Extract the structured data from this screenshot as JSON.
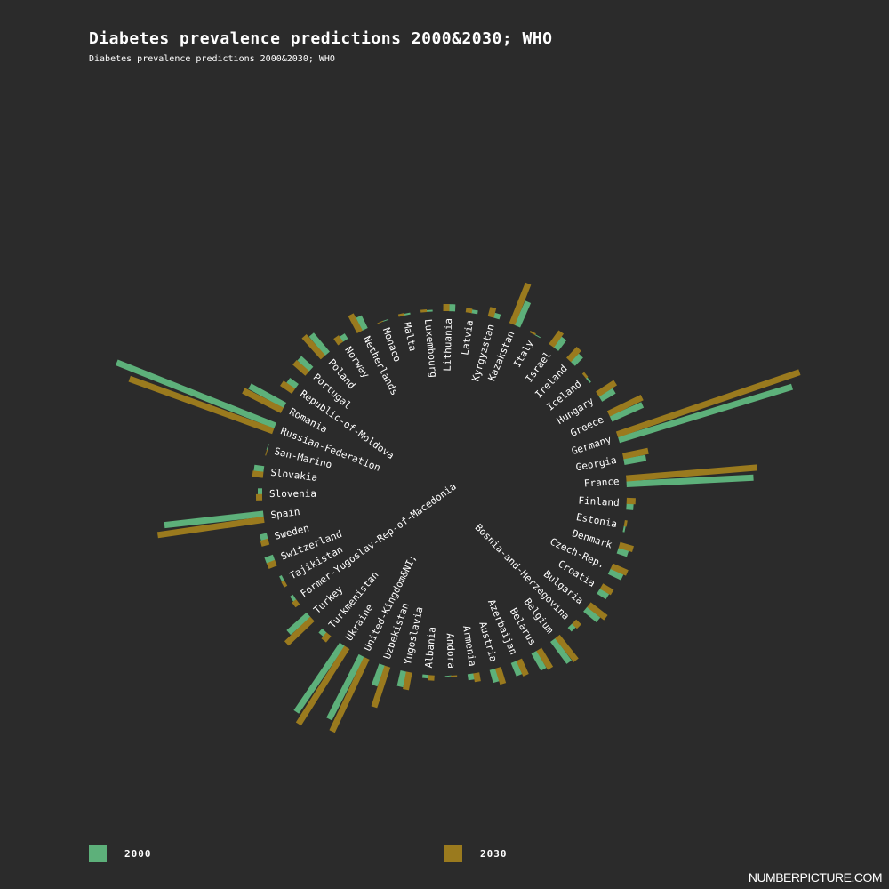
{
  "header": {
    "title": "Diabetes prevalence predictions 2000&2030; WHO",
    "subtitle": "Diabetes prevalence predictions 2000&2030; WHO"
  },
  "legend": {
    "items": [
      {
        "label": "2000",
        "color": "#5db07a"
      },
      {
        "label": "2030",
        "color": "#9a7a1e"
      }
    ]
  },
  "brand": "NUMBERPICTURE.COM",
  "chart_data": {
    "type": "bar",
    "layout": "radial",
    "title": "Diabetes prevalence predictions 2000&2030; WHO",
    "categories": [
      "Albania",
      "Andora",
      "Armenia",
      "Austria",
      "Azerbaijan",
      "Belarus",
      "Belgium",
      "Bosnia-and-Herzegovina",
      "Bulgaria",
      "Croatia",
      "Czech-Rep.",
      "Denmark",
      "Estonia",
      "Finland",
      "France",
      "Georgia",
      "Germany",
      "Greece",
      "Hungary",
      "Iceland",
      "Ireland",
      "Israel",
      "Italy",
      "Kazakstan",
      "Kyrgyzstan",
      "Latvia",
      "Lithuania",
      "Luxembourg",
      "Malta",
      "Monaco",
      "Netherlands",
      "Norway",
      "Poland",
      "Portugal",
      "Republic-of-Moldova",
      "Romania",
      "Russian-Federation",
      "San-Marino",
      "Slovakia",
      "Slovenia",
      "Spain",
      "Sweden",
      "Switzerland",
      "Tajikistan",
      "Former-Yugoslav-Rep-of-Macedonia",
      "Turkey",
      "Turkmenistan",
      "Ukraine",
      "United-Kingdom&NI;",
      "Uzbekistan",
      "Yugoslavia"
    ],
    "series": [
      {
        "name": "2000",
        "color": "#5db07a",
        "values": [
          4,
          1,
          7,
          15,
          16,
          22,
          31,
          6,
          19,
          12,
          16,
          12,
          2,
          8,
          143,
          25,
          204,
          39,
          18,
          2,
          13,
          15,
          1,
          30,
          6,
          4,
          8,
          2,
          2,
          1,
          16,
          7,
          28,
          18,
          12,
          45,
          192,
          1,
          11,
          5,
          112,
          8,
          10,
          3,
          4,
          30,
          6,
          92,
          80,
          25,
          18
        ]
      },
      {
        "name": "2030",
        "color": "#9a7a1e",
        "values": [
          6,
          2,
          10,
          19,
          19,
          25,
          34,
          8,
          24,
          14,
          19,
          16,
          3,
          10,
          148,
          29,
          217,
          42,
          24,
          3,
          17,
          19,
          2,
          49,
          11,
          5,
          8,
          3,
          3,
          1,
          22,
          9,
          32,
          19,
          16,
          49,
          172,
          1,
          12,
          7,
          121,
          9,
          10,
          4,
          6,
          40,
          9,
          102,
          91,
          48,
          20
        ]
      }
    ]
  }
}
